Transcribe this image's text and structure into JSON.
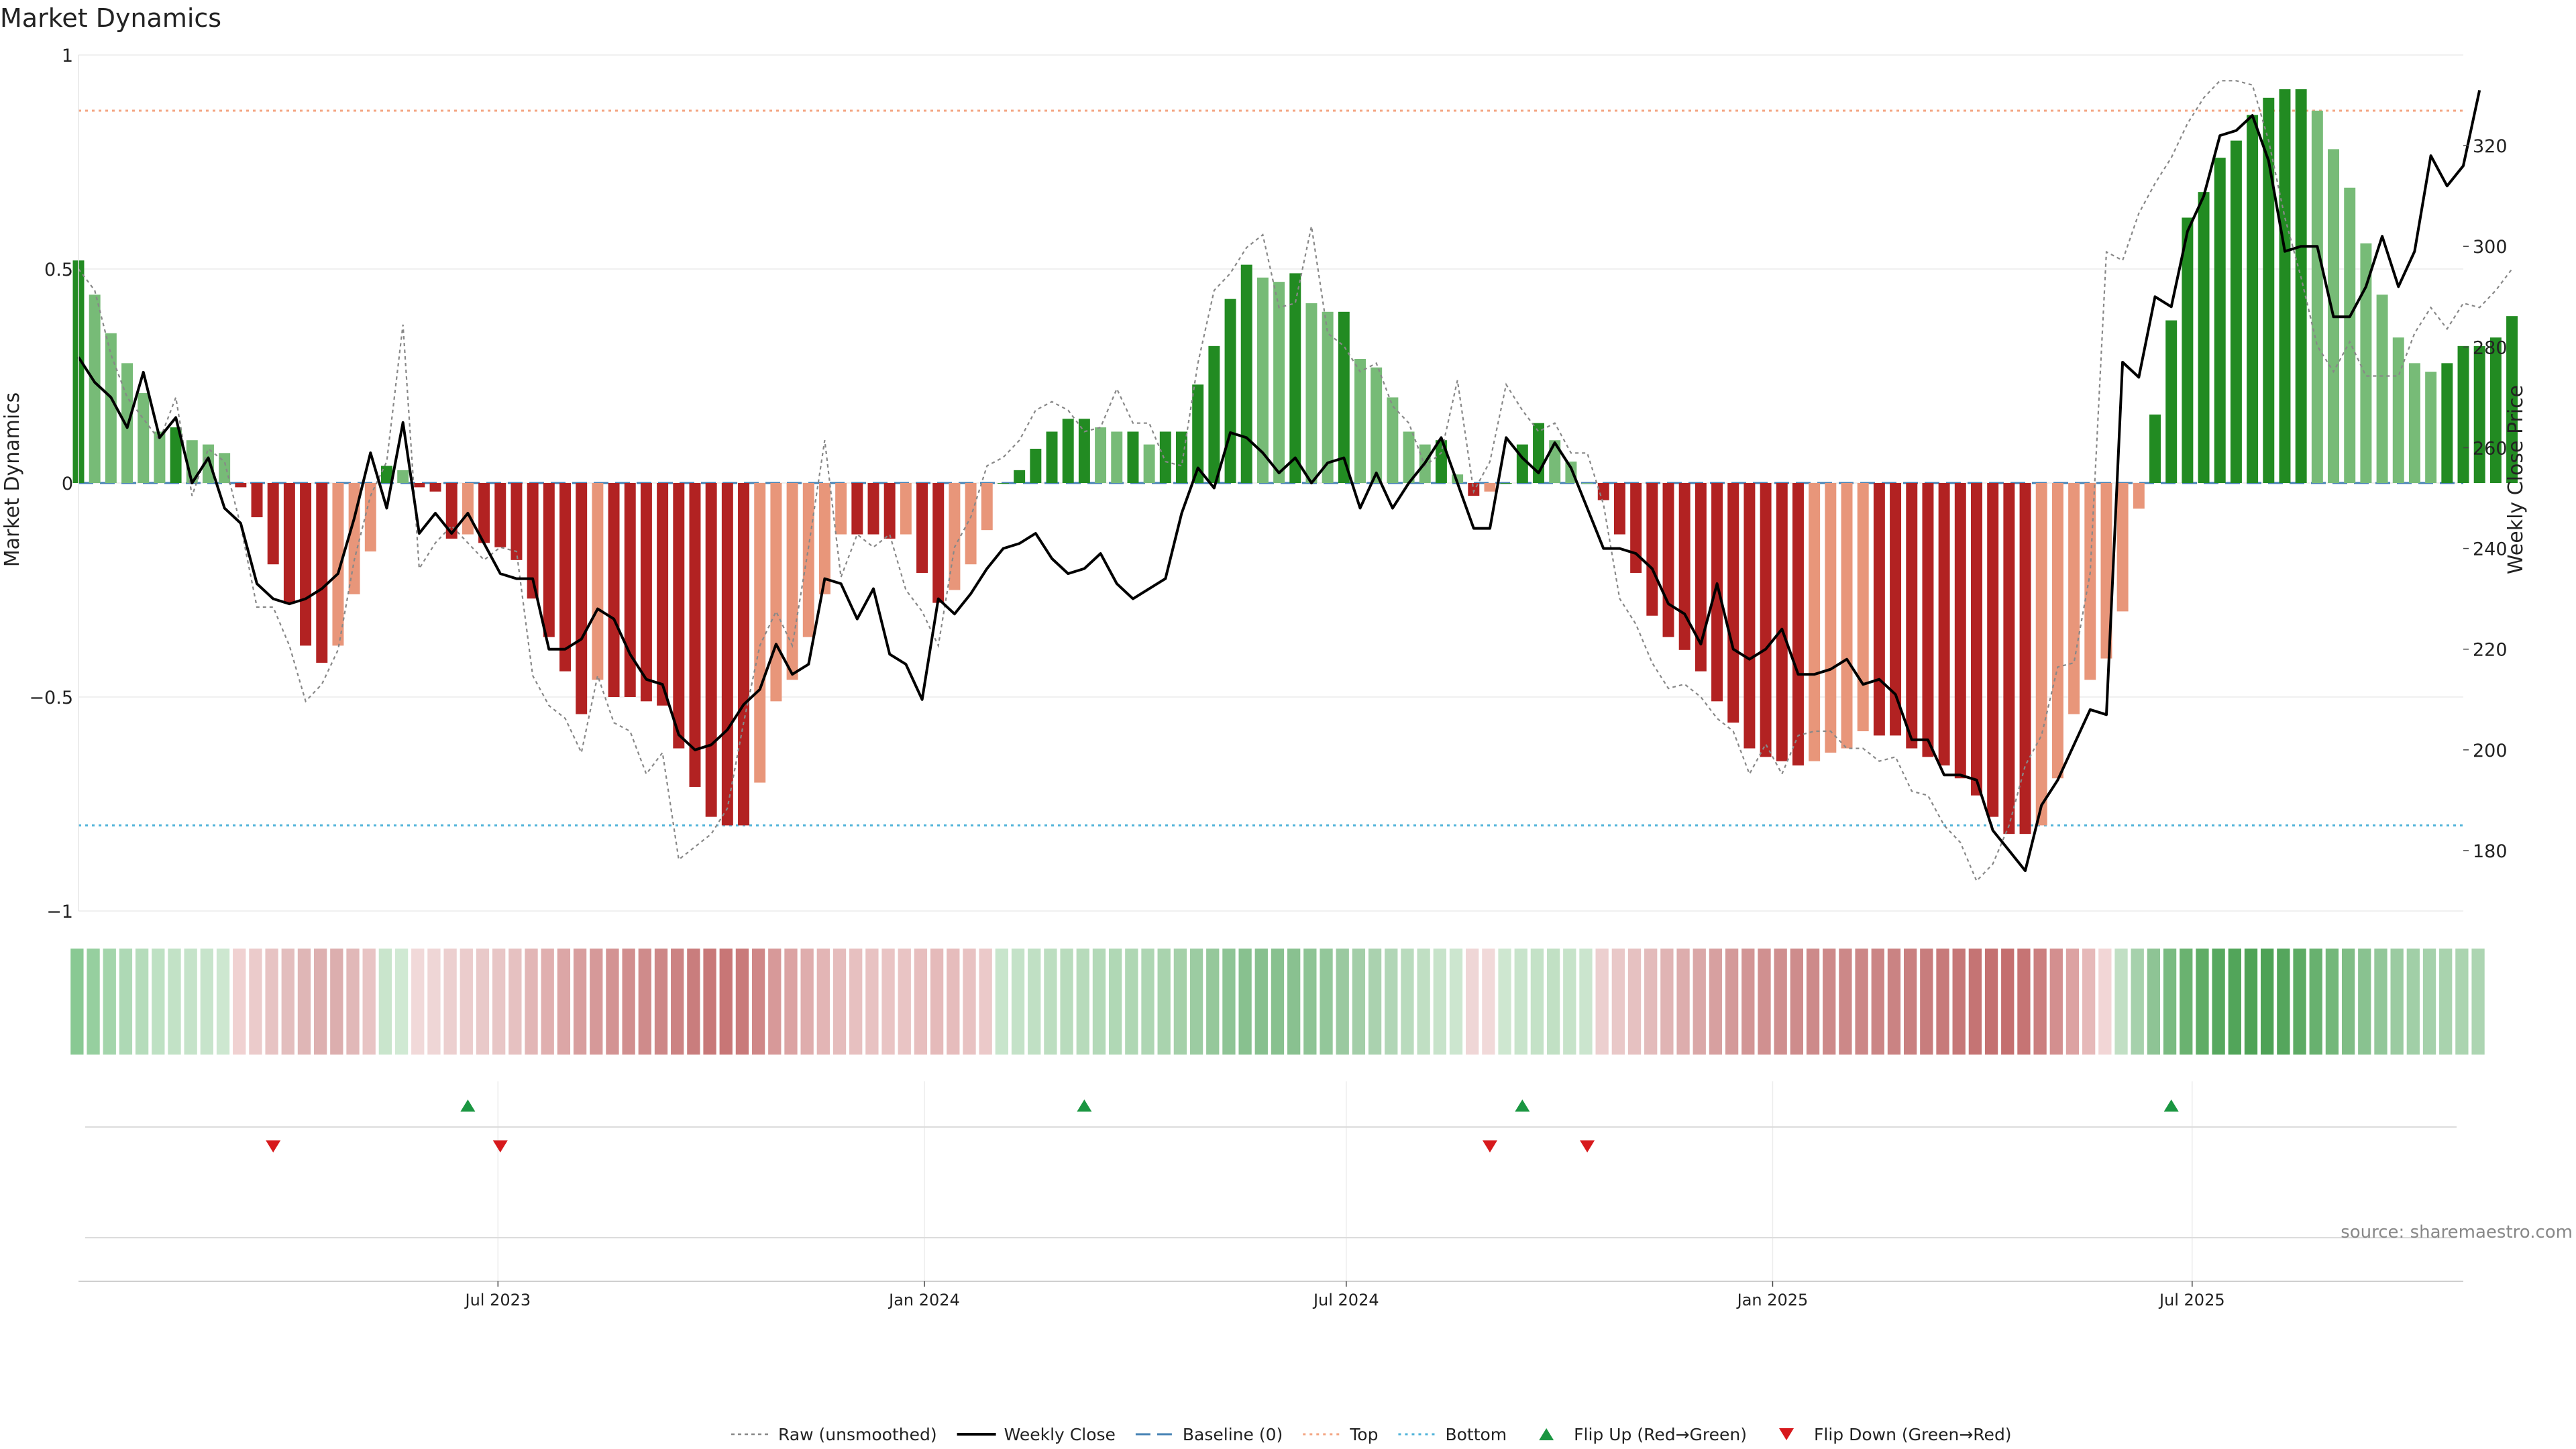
{
  "chart_data": {
    "type": "bar",
    "title": "Market Dynamics",
    "ylabel": "Market Dynamics",
    "ylabel_right": "Weekly Close Price",
    "ylim": [
      -1,
      1
    ],
    "ylim_right": [
      168,
      338
    ],
    "y_ticks": [
      {
        "value": 1,
        "label": "1"
      },
      {
        "value": 0.5,
        "label": "0.5"
      },
      {
        "value": 0,
        "label": "0"
      },
      {
        "value": -0.5,
        "label": "−0.5"
      },
      {
        "value": -1,
        "label": "−1"
      }
    ],
    "y_ticks_right": [
      {
        "value": 180,
        "label": "180"
      },
      {
        "value": 200,
        "label": "200"
      },
      {
        "value": 220,
        "label": "220"
      },
      {
        "value": 240,
        "label": "240"
      },
      {
        "value": 260,
        "label": "260"
      },
      {
        "value": 280,
        "label": "280"
      },
      {
        "value": 300,
        "label": "300"
      },
      {
        "value": 320,
        "label": "320"
      }
    ],
    "x_range": [
      "2023-01-01",
      "2025-10-26"
    ],
    "x_ticks": [
      {
        "date": "2023-07-01",
        "label": "Jul 2023"
      },
      {
        "date": "2024-01-01",
        "label": "Jan 2024"
      },
      {
        "date": "2024-07-01",
        "label": "Jul 2024"
      },
      {
        "date": "2025-01-01",
        "label": "Jan 2025"
      },
      {
        "date": "2025-07-01",
        "label": "Jul 2025"
      }
    ],
    "start_date": "2023-01-01",
    "top_level": 0.87,
    "bottom_level": -0.8,
    "baseline": 0,
    "bars": [
      0.52,
      0.44,
      0.35,
      0.28,
      0.21,
      0.12,
      0.13,
      0.1,
      0.09,
      0.07,
      -0.01,
      -0.08,
      -0.19,
      -0.28,
      -0.38,
      -0.42,
      -0.38,
      -0.26,
      -0.16,
      0.04,
      0.03,
      -0.01,
      -0.02,
      -0.13,
      -0.12,
      -0.14,
      -0.15,
      -0.18,
      -0.27,
      -0.36,
      -0.44,
      -0.54,
      -0.46,
      -0.5,
      -0.5,
      -0.51,
      -0.52,
      -0.62,
      -0.71,
      -0.78,
      -0.8,
      -0.8,
      -0.7,
      -0.51,
      -0.46,
      -0.36,
      -0.26,
      -0.12,
      -0.12,
      -0.12,
      -0.13,
      -0.12,
      -0.21,
      -0.28,
      -0.25,
      -0.19,
      -0.11,
      0.0,
      0.03,
      0.08,
      0.12,
      0.15,
      0.15,
      0.13,
      0.12,
      0.12,
      0.09,
      0.12,
      0.12,
      0.23,
      0.32,
      0.43,
      0.51,
      0.48,
      0.47,
      0.49,
      0.42,
      0.4,
      0.4,
      0.29,
      0.27,
      0.2,
      0.12,
      0.09,
      0.1,
      0.02,
      -0.03,
      -0.02,
      0.0,
      0.09,
      0.14,
      0.1,
      0.05,
      0.0,
      -0.04,
      -0.12,
      -0.21,
      -0.31,
      -0.36,
      -0.39,
      -0.44,
      -0.51,
      -0.56,
      -0.62,
      -0.64,
      -0.65,
      -0.66,
      -0.65,
      -0.63,
      -0.62,
      -0.58,
      -0.59,
      -0.59,
      -0.62,
      -0.64,
      -0.66,
      -0.69,
      -0.73,
      -0.78,
      -0.82,
      -0.82,
      -0.8,
      -0.69,
      -0.54,
      -0.46,
      -0.41,
      -0.3,
      -0.06,
      0.16,
      0.38,
      0.62,
      0.68,
      0.76,
      0.8,
      0.86,
      0.9,
      0.92,
      0.92,
      0.87,
      0.78,
      0.69,
      0.56,
      0.44,
      0.34,
      0.28,
      0.26,
      0.28,
      0.32,
      0.32,
      0.34,
      0.39
    ],
    "raw": [
      0.5,
      0.45,
      0.3,
      0.2,
      0.15,
      0.1,
      0.2,
      -0.03,
      0.08,
      0.05,
      -0.1,
      -0.29,
      -0.29,
      -0.38,
      -0.51,
      -0.47,
      -0.39,
      -0.18,
      -0.03,
      0.05,
      0.37,
      -0.2,
      -0.14,
      -0.1,
      -0.14,
      -0.18,
      -0.15,
      -0.16,
      -0.45,
      -0.52,
      -0.55,
      -0.63,
      -0.45,
      -0.56,
      -0.58,
      -0.68,
      -0.63,
      -0.88,
      -0.85,
      -0.82,
      -0.76,
      -0.56,
      -0.38,
      -0.3,
      -0.38,
      -0.15,
      0.1,
      -0.22,
      -0.12,
      -0.15,
      -0.12,
      -0.25,
      -0.3,
      -0.38,
      -0.15,
      -0.08,
      0.04,
      0.06,
      0.1,
      0.17,
      0.19,
      0.17,
      0.12,
      0.13,
      0.22,
      0.14,
      0.14,
      0.05,
      0.04,
      0.28,
      0.45,
      0.49,
      0.55,
      0.58,
      0.41,
      0.42,
      0.6,
      0.35,
      0.32,
      0.26,
      0.28,
      0.18,
      0.14,
      0.04,
      0.07,
      0.24,
      -0.02,
      0.05,
      0.23,
      0.17,
      0.12,
      0.14,
      0.07,
      0.07,
      -0.05,
      -0.27,
      -0.33,
      -0.42,
      -0.48,
      -0.47,
      -0.5,
      -0.55,
      -0.58,
      -0.68,
      -0.61,
      -0.68,
      -0.59,
      -0.58,
      -0.58,
      -0.62,
      -0.62,
      -0.65,
      -0.64,
      -0.72,
      -0.73,
      -0.8,
      -0.84,
      -0.93,
      -0.89,
      -0.8,
      -0.66,
      -0.59,
      -0.43,
      -0.42,
      -0.21,
      0.54,
      0.52,
      0.63,
      0.7,
      0.76,
      0.84,
      0.9,
      0.94,
      0.94,
      0.93,
      0.8,
      0.62,
      0.48,
      0.32,
      0.26,
      0.33,
      0.25,
      0.25,
      0.25,
      0.35,
      0.41,
      0.36,
      0.42,
      0.41,
      0.45,
      0.5
    ],
    "close": [
      278,
      273,
      270,
      264,
      275,
      262,
      266,
      253,
      258,
      248,
      245,
      233,
      230,
      229,
      230,
      232,
      235,
      246,
      259,
      248,
      265,
      243,
      247,
      243,
      247,
      241,
      235,
      234,
      234,
      220,
      220,
      222,
      228,
      226,
      219,
      214,
      213,
      203,
      200,
      201,
      204,
      209,
      212,
      221,
      215,
      217,
      234,
      233,
      226,
      232,
      219,
      217,
      210,
      230,
      227,
      231,
      236,
      240,
      241,
      243,
      238,
      235,
      236,
      239,
      233,
      230,
      232,
      234,
      247,
      256,
      252,
      263,
      262,
      259,
      255,
      258,
      253,
      257,
      258,
      248,
      255,
      248,
      253,
      257,
      262,
      253,
      244,
      244,
      262,
      258,
      255,
      261,
      256,
      248,
      240,
      240,
      239,
      236,
      229,
      227,
      221,
      233,
      220,
      218,
      220,
      224,
      215,
      215,
      216,
      218,
      213,
      214,
      211,
      202,
      202,
      195,
      195,
      194,
      184,
      180,
      176,
      189,
      194,
      201,
      208,
      207,
      277,
      274,
      290,
      288,
      303,
      310,
      322,
      323,
      326,
      317,
      299,
      300,
      300,
      286,
      286,
      292,
      302,
      292,
      299,
      318,
      312,
      316,
      331
    ],
    "strip_colors": [
      "#89c993",
      "#96cf9f",
      "#a3d5ab",
      "#aed9b5",
      "#b5dcbb",
      "#bee1c3",
      "#c2e2c6",
      "#c5e3c9",
      "#c7e4cb",
      "#cde7d0",
      "#f0d1d1",
      "#ebcbcb",
      "#e7c3c3",
      "#e3bebe",
      "#dfb6b6",
      "#ddb0b0",
      "#dcaeae",
      "#e1b8b8",
      "#e8c4c4",
      "#c9e5cc",
      "#d0e9d3",
      "#f1d9d9",
      "#efd6d6",
      "#eccfcf",
      "#ebcccc",
      "#e9c9c9",
      "#e8c6c6",
      "#e6c1c1",
      "#e2b6b6",
      "#e0afaf",
      "#dca6a6",
      "#d89e9e",
      "#d69999",
      "#d39393",
      "#d18f8f",
      "#cf8b8b",
      "#cd8787",
      "#cc8383",
      "#c97d7d",
      "#c87878",
      "#c87676",
      "#c97a7a",
      "#cf8787",
      "#d79999",
      "#dba3a3",
      "#dfadad",
      "#e3b5b5",
      "#e5bcbc",
      "#e7c0c0",
      "#e8c2c2",
      "#e9c4c4",
      "#e9c4c4",
      "#e7bebe",
      "#e5baba",
      "#e6bcbc",
      "#e8c2c2",
      "#ebc9c9",
      "#c8e5cc",
      "#c4e2c8",
      "#c0e0c4",
      "#bcdec0",
      "#b9dcbd",
      "#b7dbbb",
      "#b3d9b8",
      "#b0d8b5",
      "#afd7b4",
      "#aed6b3",
      "#a9d3ae",
      "#a4d0a9",
      "#9ccca2",
      "#95c89b",
      "#8ec495",
      "#88c18f",
      "#87c08e",
      "#88c18f",
      "#89c190",
      "#8ec495",
      "#93c79a",
      "#9ac9a0",
      "#a3cea8",
      "#aad2af",
      "#b1d6b6",
      "#b9dbbd",
      "#c0dfc3",
      "#c7e3ca",
      "#cce6cf",
      "#efd6d6",
      "#f1d9d9",
      "#cee7d0",
      "#c8e4cb",
      "#c4e2c7",
      "#c1e0c4",
      "#c6e3c9",
      "#cbe5ce",
      "#eccfcf",
      "#e9c8c8",
      "#e6c1c1",
      "#e3bbbb",
      "#e0b4b4",
      "#ddadad",
      "#daa7a7",
      "#d7a0a0",
      "#d49a9a",
      "#d29595",
      "#d09090",
      "#cf8e8e",
      "#ce8c8c",
      "#cd8a8a",
      "#cd8989",
      "#cc8888",
      "#cc8787",
      "#cb8585",
      "#ca8383",
      "#c98080",
      "#c87d7d",
      "#c77a7a",
      "#c67777",
      "#c57474",
      "#c47171",
      "#c46f6f",
      "#c67474",
      "#cb7f7f",
      "#d38f8f",
      "#dca2a2",
      "#e6b9b9",
      "#f2d6d6",
      "#c1dfc4",
      "#a6d1ac",
      "#8ec495",
      "#7abb81",
      "#6ab270",
      "#5fac66",
      "#57a85f",
      "#52a55a",
      "#4fa357",
      "#4ea256",
      "#55a65d",
      "#5dab64",
      "#68b16f",
      "#74b77a",
      "#7fbd85",
      "#89c290",
      "#92c799",
      "#9bcba1",
      "#a1cfa7",
      "#a5d1ab",
      "#a9d3ae",
      "#abd4b0",
      "#add5b2"
    ],
    "flip_up": [
      "2023-06-18",
      "2024-03-10",
      "2024-09-15",
      "2025-06-22"
    ],
    "flip_down": [
      "2023-03-26",
      "2023-07-02",
      "2024-09-01",
      "2024-10-13"
    ],
    "colors": {
      "strong_green": "#228b22",
      "light_green": "#77bb77",
      "strong_red": "#b22222",
      "light_red": "#e8967a",
      "close_line": "#000000",
      "raw_line": "#888888",
      "baseline": "#4682b4",
      "top": "#f4a582",
      "bottom": "#4fb3d9",
      "flip_up_marker": "#1a9641",
      "flip_down_marker": "#d7191c"
    },
    "legend": [
      {
        "label": "Raw (unsmoothed)",
        "kind": "raw"
      },
      {
        "label": "Weekly Close",
        "kind": "close"
      },
      {
        "label": "Baseline (0)",
        "kind": "baseline"
      },
      {
        "label": "Top",
        "kind": "top"
      },
      {
        "label": "Bottom",
        "kind": "bottom"
      },
      {
        "label": "Flip Up (Red→Green)",
        "kind": "up"
      },
      {
        "label": "Flip Down (Green→Red)",
        "kind": "down"
      }
    ],
    "legend_position": "bottom-center",
    "source": "source: sharemaestro.com"
  }
}
